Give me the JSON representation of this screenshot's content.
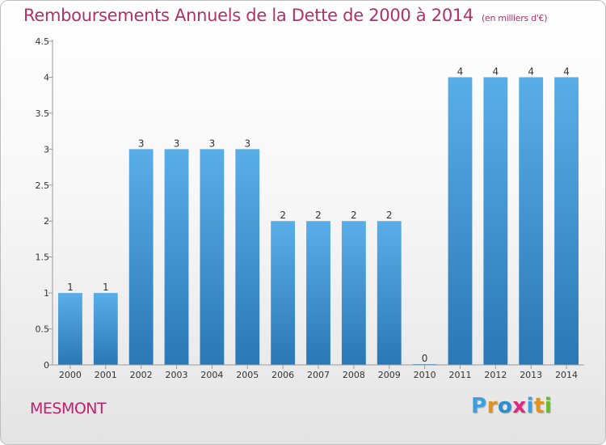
{
  "chart_data": {
    "type": "bar",
    "title": "Remboursements Annuels de la Dette de 2000 à 2014",
    "subtitle": "(en milliers d'€)",
    "categories": [
      "2000",
      "2001",
      "2002",
      "2003",
      "2004",
      "2005",
      "2006",
      "2007",
      "2008",
      "2009",
      "2010",
      "2011",
      "2012",
      "2013",
      "2014"
    ],
    "values": [
      1,
      1,
      3,
      3,
      3,
      3,
      2,
      2,
      2,
      2,
      0,
      4,
      4,
      4,
      4
    ],
    "data_labels": [
      "1",
      "1",
      "3",
      "3",
      "3",
      "3",
      "2",
      "2",
      "2",
      "2",
      "0",
      "4",
      "4",
      "4",
      "4"
    ],
    "yticks": [
      "0",
      "0.5",
      "1",
      "1.5",
      "2",
      "2.5",
      "3",
      "3.5",
      "4",
      "4.5"
    ],
    "ylim": [
      0,
      4.5
    ],
    "xlabel": "",
    "ylabel": "",
    "grid": false,
    "bar_color_top": "#5aaee8",
    "bar_color_bottom": "#2a78b6"
  },
  "footer": {
    "town": "MESMONT",
    "brand": "Proxiti",
    "brand_colors": [
      "#3aa0e0",
      "#e0921e",
      "#2a8fd0",
      "#e02880",
      "#3aa0e0",
      "#e0921e",
      "#6ab82e"
    ]
  }
}
